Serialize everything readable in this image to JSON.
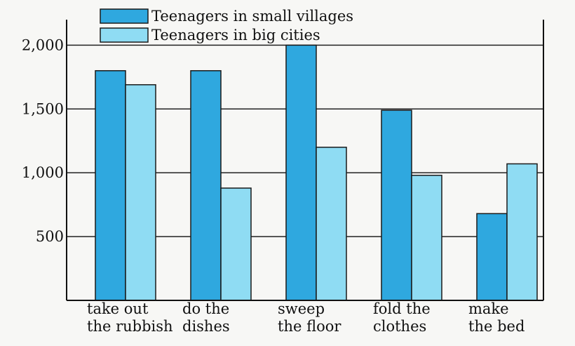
{
  "chart_data": {
    "type": "bar",
    "categories": [
      [
        "take out",
        "the rubbish"
      ],
      [
        "do the",
        "dishes"
      ],
      [
        "sweep",
        "the floor"
      ],
      [
        "fold the",
        "clothes"
      ],
      [
        "make",
        "the bed"
      ]
    ],
    "series": [
      {
        "name": "Teenagers in small villages",
        "color": "#2fa8df",
        "values": [
          1800,
          1800,
          2000,
          1490,
          680
        ]
      },
      {
        "name": "Teenagers in big cities",
        "color": "#8fdcf3",
        "values": [
          1690,
          880,
          1200,
          980,
          1070
        ]
      }
    ],
    "yticks": [
      500,
      1000,
      1500,
      2000
    ],
    "ytick_labels": [
      "500",
      "1,000",
      "1,500",
      "2,000"
    ],
    "ylim": [
      0,
      2200
    ],
    "grid": true,
    "legend_position": "top-left"
  }
}
